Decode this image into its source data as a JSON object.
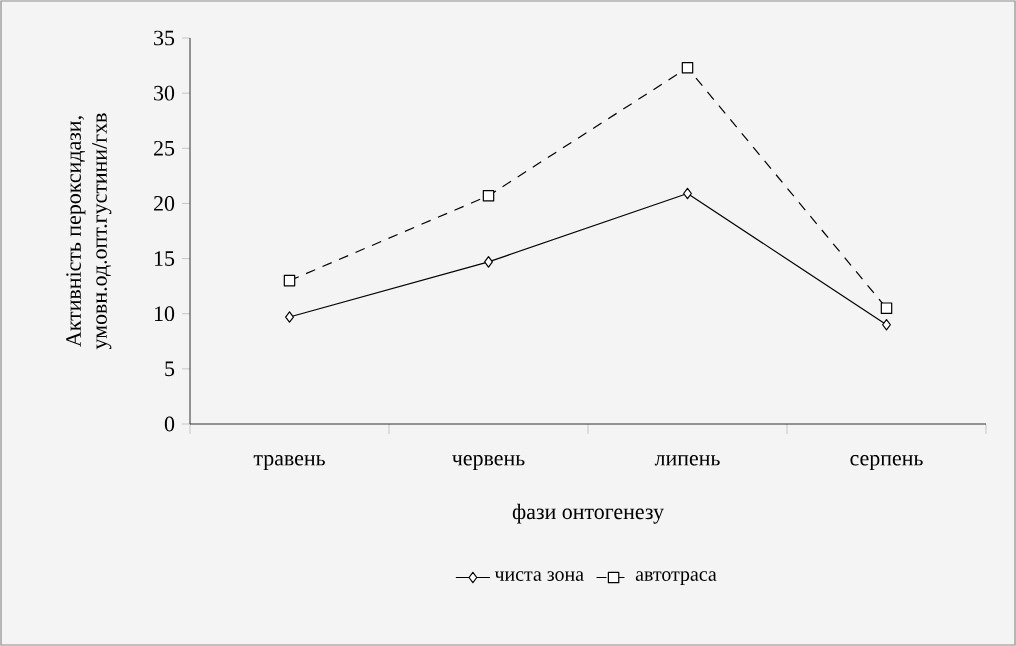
{
  "chart_data": {
    "type": "line",
    "xlabel": "фази онтогенезу",
    "ylabel": "Активність пероксидази, умовн.од.опт.густини/гхв",
    "categories": [
      "травень",
      "червень",
      "липень",
      "серпень"
    ],
    "series": [
      {
        "name": "чиста зона",
        "color": "#000000",
        "values": [
          9.7,
          14.7,
          20.9,
          9.0
        ],
        "marker": "diamond",
        "line_style": "solid"
      },
      {
        "name": "автотраса",
        "color": "#000000",
        "values": [
          13.0,
          20.7,
          32.3,
          10.5
        ],
        "marker": "square",
        "line_style": "dashed"
      }
    ],
    "ylim": [
      0,
      35
    ],
    "yticks": [
      0,
      5,
      10,
      15,
      20,
      25,
      30,
      35
    ],
    "grid": false,
    "legend": "bottom"
  }
}
